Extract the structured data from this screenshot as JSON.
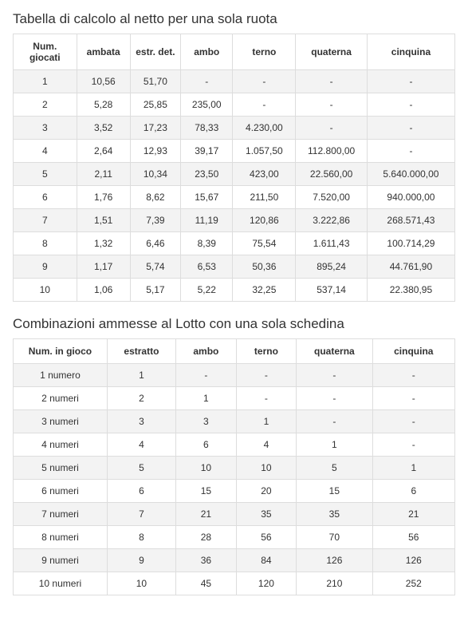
{
  "table1": {
    "title": "Tabella di calcolo al netto per una sola ruota",
    "columns": [
      "Num. giocati",
      "ambata",
      "estr. det.",
      "ambo",
      "terno",
      "quaterna",
      "cinquina"
    ],
    "rows": [
      [
        "1",
        "10,56",
        "51,70",
        "-",
        "-",
        "-",
        "-"
      ],
      [
        "2",
        "5,28",
        "25,85",
        "235,00",
        "-",
        "-",
        "-"
      ],
      [
        "3",
        "3,52",
        "17,23",
        "78,33",
        "4.230,00",
        "-",
        "-"
      ],
      [
        "4",
        "2,64",
        "12,93",
        "39,17",
        "1.057,50",
        "112.800,00",
        "-"
      ],
      [
        "5",
        "2,11",
        "10,34",
        "23,50",
        "423,00",
        "22.560,00",
        "5.640.000,00"
      ],
      [
        "6",
        "1,76",
        "8,62",
        "15,67",
        "211,50",
        "7.520,00",
        "940.000,00"
      ],
      [
        "7",
        "1,51",
        "7,39",
        "11,19",
        "120,86",
        "3.222,86",
        "268.571,43"
      ],
      [
        "8",
        "1,32",
        "6,46",
        "8,39",
        "75,54",
        "1.611,43",
        "100.714,29"
      ],
      [
        "9",
        "1,17",
        "5,74",
        "6,53",
        "50,36",
        "895,24",
        "44.761,90"
      ],
      [
        "10",
        "1,06",
        "5,17",
        "5,22",
        "32,25",
        "537,14",
        "22.380,95"
      ]
    ],
    "col_widths": [
      "80",
      "60",
      "60",
      "60",
      "75",
      "85",
      "110"
    ]
  },
  "table2": {
    "title": "Combinazioni ammesse al Lotto con una sola schedina",
    "columns": [
      "Num. in gioco",
      "estratto",
      "ambo",
      "terno",
      "quaterna",
      "cinquina"
    ],
    "rows": [
      [
        "1 numero",
        "1",
        "-",
        "-",
        "-",
        "-"
      ],
      [
        "2 numeri",
        "2",
        "1",
        "-",
        "-",
        "-"
      ],
      [
        "3 numeri",
        "3",
        "3",
        "1",
        "-",
        "-"
      ],
      [
        "4 numeri",
        "4",
        "6",
        "4",
        "1",
        "-"
      ],
      [
        "5 numeri",
        "5",
        "10",
        "10",
        "5",
        "1"
      ],
      [
        "6 numeri",
        "6",
        "15",
        "20",
        "15",
        "6"
      ],
      [
        "7 numeri",
        "7",
        "21",
        "35",
        "35",
        "21"
      ],
      [
        "8 numeri",
        "8",
        "28",
        "56",
        "70",
        "56"
      ],
      [
        "9 numeri",
        "9",
        "36",
        "84",
        "126",
        "126"
      ],
      [
        "10 numeri",
        "10",
        "45",
        "120",
        "210",
        "252"
      ]
    ],
    "col_widths": [
      "120",
      "80",
      "70",
      "70",
      "90",
      "100"
    ]
  },
  "colors": {
    "text": "#333333",
    "border": "#dddddd",
    "row_alt": "#f3f3f3",
    "background": "#ffffff"
  }
}
